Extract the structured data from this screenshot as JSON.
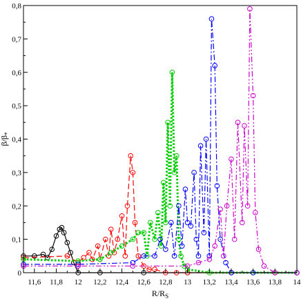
{
  "chart_data": {
    "type": "line",
    "title": "",
    "xlabel": {
      "main": "R/R",
      "sub": "S"
    },
    "ylabel": {
      "main": "β/β",
      "sub": "*"
    },
    "xlim": [
      11.5,
      14
    ],
    "ylim": [
      0,
      0.8
    ],
    "x_ticks": [
      {
        "value": 11.6,
        "label": "11,6"
      },
      {
        "value": 11.8,
        "label": "11,8"
      },
      {
        "value": 12.0,
        "label": "12"
      },
      {
        "value": 12.2,
        "label": "12,2"
      },
      {
        "value": 12.4,
        "label": "12,4"
      },
      {
        "value": 12.6,
        "label": "12,6"
      },
      {
        "value": 12.8,
        "label": "12,8"
      },
      {
        "value": 13.0,
        "label": "13"
      },
      {
        "value": 13.2,
        "label": "13,2"
      },
      {
        "value": 13.4,
        "label": "13,4"
      },
      {
        "value": 13.6,
        "label": "13,6"
      },
      {
        "value": 13.8,
        "label": "13,8"
      },
      {
        "value": 14.0,
        "label": "14"
      }
    ],
    "y_ticks": [
      {
        "value": 0,
        "label": "0"
      },
      {
        "value": 0.1,
        "label": "0,1"
      },
      {
        "value": 0.2,
        "label": "0,2"
      },
      {
        "value": 0.3,
        "label": "0,3"
      },
      {
        "value": 0.4,
        "label": "0,4"
      },
      {
        "value": 0.5,
        "label": "0,5"
      },
      {
        "value": 0.6,
        "label": "0,6"
      },
      {
        "value": 0.7,
        "label": "0,7"
      },
      {
        "value": 0.8,
        "label": "0,8"
      }
    ],
    "grid": false,
    "legend": "none",
    "series": [
      {
        "color": "#000000",
        "line": "solid",
        "marker": "circle",
        "x": [
          11.5,
          11.6,
          11.68,
          11.72,
          11.76,
          11.8,
          11.83,
          11.85,
          11.87,
          11.9,
          11.93,
          11.96,
          12.0,
          12.2,
          12.6,
          13.0,
          13.4,
          13.8,
          14.0
        ],
        "y": [
          0.05,
          0.05,
          0.055,
          0.045,
          0.07,
          0.11,
          0.13,
          0.135,
          0.12,
          0.09,
          0.06,
          0.03,
          0.0,
          0.0,
          0.0,
          0.0,
          0.0,
          0.0,
          0.0
        ]
      },
      {
        "color": "#ff0000",
        "line": "dashed",
        "marker": "circle",
        "x": [
          11.5,
          11.9,
          12.0,
          12.05,
          12.1,
          12.13,
          12.18,
          12.2,
          12.25,
          12.28,
          12.3,
          12.33,
          12.36,
          12.4,
          12.43,
          12.45,
          12.48,
          12.5,
          12.52,
          12.55,
          12.6,
          12.65,
          12.7,
          12.8,
          12.9,
          13.0,
          13.4,
          13.8,
          14.0
        ],
        "y": [
          0.045,
          0.05,
          0.03,
          0.045,
          0.06,
          0.04,
          0.08,
          0.04,
          0.1,
          0.05,
          0.13,
          0.06,
          0.1,
          0.17,
          0.05,
          0.2,
          0.35,
          0.3,
          0.15,
          0.05,
          0.02,
          0.01,
          0.01,
          0.0,
          0.0,
          0.0,
          0.0,
          0.0,
          0.0
        ]
      },
      {
        "color": "#00cc00",
        "line": "dotted",
        "marker": "circle",
        "x": [
          11.5,
          12.0,
          12.2,
          12.3,
          12.4,
          12.5,
          12.55,
          12.6,
          12.63,
          12.66,
          12.7,
          12.73,
          12.76,
          12.78,
          12.8,
          12.82,
          12.84,
          12.86,
          12.88,
          12.9,
          12.92,
          12.94,
          12.97,
          13.0,
          13.2,
          13.6,
          14.0
        ],
        "y": [
          0.04,
          0.035,
          0.04,
          0.06,
          0.08,
          0.1,
          0.12,
          0.12,
          0.05,
          0.15,
          0.1,
          0.18,
          0.08,
          0.27,
          0.15,
          0.45,
          0.2,
          0.6,
          0.3,
          0.35,
          0.1,
          0.05,
          0.02,
          0.01,
          0.0,
          0.0,
          0.0
        ]
      },
      {
        "color": "#0000ff",
        "line": "dash-dot",
        "marker": "circle",
        "x": [
          11.5,
          12.0,
          12.5,
          12.6,
          12.7,
          12.75,
          12.8,
          12.85,
          12.88,
          12.92,
          12.95,
          12.98,
          13.0,
          13.03,
          13.06,
          13.08,
          13.1,
          13.12,
          13.15,
          13.17,
          13.2,
          13.22,
          13.25,
          13.27,
          13.3,
          13.35,
          13.4,
          13.6,
          14.0
        ],
        "y": [
          0.025,
          0.025,
          0.03,
          0.05,
          0.05,
          0.1,
          0.07,
          0.15,
          0.05,
          0.2,
          0.08,
          0.25,
          0.15,
          0.14,
          0.3,
          0.1,
          0.05,
          0.38,
          0.12,
          0.4,
          0.05,
          0.76,
          0.62,
          0.26,
          0.1,
          0.03,
          0.0,
          0.0,
          0.0
        ]
      },
      {
        "color": "#cc00cc",
        "line": "dash-dot-dot",
        "marker": "circle",
        "x": [
          11.5,
          12.0,
          12.5,
          13.0,
          13.1,
          13.2,
          13.25,
          13.3,
          13.33,
          13.36,
          13.4,
          13.43,
          13.46,
          13.5,
          13.52,
          13.55,
          13.57,
          13.6,
          13.62,
          13.65,
          13.7,
          13.8,
          14.0
        ],
        "y": [
          0.02,
          0.02,
          0.02,
          0.02,
          0.03,
          0.04,
          0.08,
          0.19,
          0.05,
          0.2,
          0.34,
          0.1,
          0.45,
          0.15,
          0.44,
          0.2,
          0.79,
          0.53,
          0.18,
          0.07,
          0.02,
          0.0,
          0.0
        ]
      }
    ]
  }
}
